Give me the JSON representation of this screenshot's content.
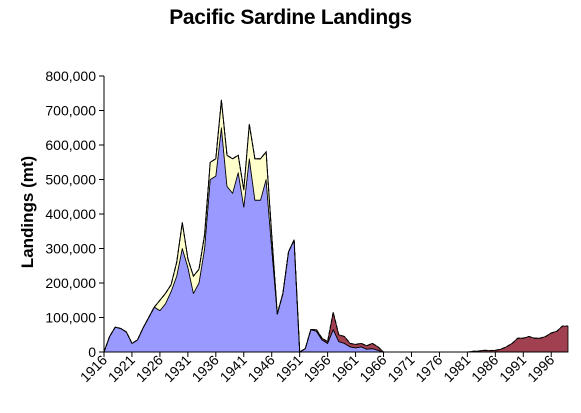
{
  "chart_data": {
    "type": "area",
    "stacked": true,
    "title": "Pacific Sardine Landings",
    "xlabel": "",
    "ylabel": "Landings (mt)",
    "ylim": [
      0,
      800000
    ],
    "grid": false,
    "legend": "none",
    "y_ticks": [
      "0",
      "100,000",
      "200,000",
      "300,000",
      "400,000",
      "500,000",
      "600,000",
      "700,000",
      "800,000"
    ],
    "x_ticks": [
      "1916",
      "1921",
      "1926",
      "1931",
      "1936",
      "1941",
      "1946",
      "1951",
      "1956",
      "1961",
      "1966",
      "1971",
      "1976",
      "1981",
      "1986",
      "1991",
      "1996"
    ],
    "x": [
      1916,
      1917,
      1918,
      1919,
      1920,
      1921,
      1922,
      1923,
      1924,
      1925,
      1926,
      1927,
      1928,
      1929,
      1930,
      1931,
      1932,
      1933,
      1934,
      1935,
      1936,
      1937,
      1938,
      1939,
      1940,
      1941,
      1942,
      1943,
      1944,
      1945,
      1946,
      1947,
      1948,
      1949,
      1950,
      1951,
      1952,
      1953,
      1954,
      1955,
      1956,
      1957,
      1958,
      1959,
      1960,
      1961,
      1962,
      1963,
      1964,
      1965,
      1966,
      1967,
      1968,
      1969,
      1970,
      1971,
      1972,
      1973,
      1974,
      1975,
      1976,
      1977,
      1978,
      1979,
      1980,
      1981,
      1982,
      1983,
      1984,
      1985,
      1986,
      1987,
      1988,
      1989,
      1990,
      1991,
      1992,
      1993,
      1994,
      1995,
      1996,
      1997,
      1998,
      1999
    ],
    "series": [
      {
        "color": "#9999ff",
        "values": [
          0,
          45000,
          72000,
          68000,
          58000,
          25000,
          35000,
          70000,
          100000,
          130000,
          120000,
          140000,
          175000,
          220000,
          300000,
          245000,
          170000,
          200000,
          300000,
          500000,
          510000,
          650000,
          480000,
          460000,
          520000,
          420000,
          560000,
          440000,
          440000,
          500000,
          300000,
          110000,
          170000,
          290000,
          325000,
          0,
          10000,
          65000,
          60000,
          35000,
          25000,
          65000,
          30000,
          25000,
          15000,
          12000,
          15000,
          8000,
          10000,
          5000,
          0,
          0,
          0,
          0,
          0,
          0,
          0,
          0,
          0,
          0,
          0,
          0,
          0,
          0,
          0,
          0,
          0,
          0,
          0,
          0,
          0,
          0,
          0,
          0,
          0,
          0,
          0,
          0,
          0,
          0,
          0,
          0,
          0,
          0
        ]
      },
      {
        "color": "#ffffcc",
        "values": [
          0,
          0,
          0,
          0,
          0,
          0,
          0,
          0,
          0,
          0,
          30000,
          30000,
          20000,
          40000,
          75000,
          25000,
          50000,
          40000,
          40000,
          50000,
          50000,
          80000,
          90000,
          100000,
          50000,
          50000,
          100000,
          120000,
          120000,
          80000,
          40000,
          0,
          0,
          0,
          0,
          0,
          0,
          0,
          0,
          0,
          0,
          0,
          0,
          0,
          0,
          0,
          0,
          0,
          0,
          0,
          0,
          0,
          0,
          0,
          0,
          0,
          0,
          0,
          0,
          0,
          0,
          0,
          0,
          0,
          0,
          0,
          0,
          0,
          0,
          0,
          0,
          0,
          0,
          0,
          0,
          0,
          0,
          0,
          0,
          0,
          0,
          0,
          0,
          0
        ]
      },
      {
        "color": "#a04050",
        "values": [
          0,
          0,
          0,
          0,
          0,
          0,
          0,
          0,
          0,
          0,
          0,
          0,
          0,
          0,
          0,
          0,
          0,
          0,
          0,
          0,
          0,
          0,
          0,
          0,
          0,
          0,
          0,
          0,
          0,
          0,
          0,
          0,
          0,
          0,
          0,
          0,
          0,
          0,
          5000,
          5000,
          5000,
          50000,
          20000,
          20000,
          10000,
          10000,
          10000,
          10000,
          15000,
          10000,
          0,
          0,
          0,
          0,
          0,
          0,
          0,
          0,
          0,
          0,
          0,
          0,
          0,
          0,
          0,
          0,
          2000,
          3000,
          5000,
          4000,
          5000,
          8000,
          15000,
          25000,
          40000,
          40000,
          45000,
          40000,
          40000,
          45000,
          55000,
          60000,
          75000,
          75000
        ]
      }
    ]
  }
}
